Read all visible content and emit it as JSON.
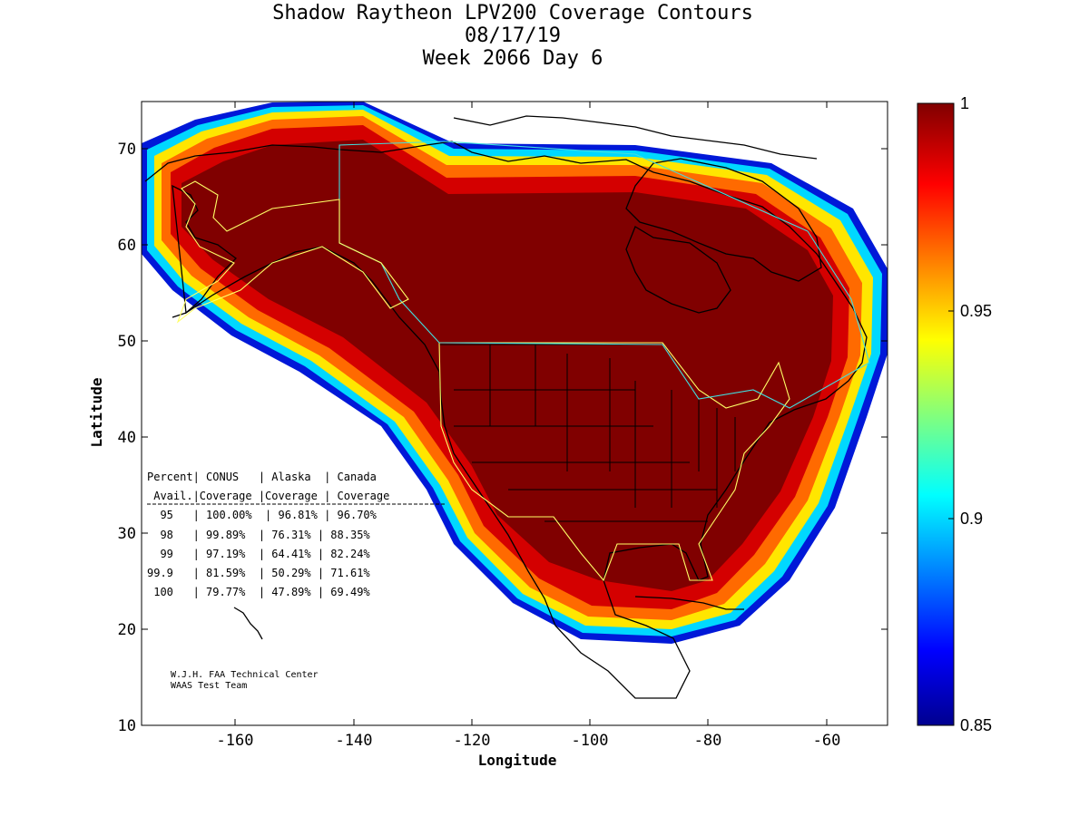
{
  "title_lines": [
    "Shadow Raytheon LPV200 Coverage Contours",
    "08/17/19",
    "Week 2066 Day 6"
  ],
  "map": {
    "xlabel": "Longitude",
    "ylabel": "Latitude",
    "xlim": [
      -175,
      -50
    ],
    "ylim": [
      10,
      75
    ],
    "x_ticks": [
      "-160",
      "-140",
      "-120",
      "-100",
      "-80",
      "-60"
    ],
    "y_ticks": [
      "70",
      "60",
      "50",
      "40",
      "30",
      "20",
      "10"
    ]
  },
  "colorbar": {
    "min": 0.85,
    "max": 1,
    "ticks": [
      "1",
      "0.95",
      "0.9",
      "0.85"
    ],
    "colormap": "jet"
  },
  "table": {
    "header1": "Percent| CONUS   | Alaska  | Canada",
    "header2": " Avail.|Coverage |Coverage | Coverage",
    "rows": [
      "  95   | 100.00%  | 96.81% | 96.70%",
      "  98   | 99.89%  | 76.31% | 88.35%",
      "  99   | 97.19%  | 64.41% | 82.24%",
      "99.9   | 81.59%  | 50.29% | 71.61%",
      " 100   | 79.77%  | 47.89% | 69.49%"
    ]
  },
  "credit": {
    "line1": "W.J.H. FAA Technical Center",
    "line2": "WAAS Test Team"
  },
  "colors": {
    "deep_red": "#800000",
    "red": "#d10000",
    "orange": "#ff6a00",
    "yellow": "#ffee00",
    "cyan": "#00e5ff",
    "blue": "#0030ff",
    "dark_blue": "#00008f"
  }
}
